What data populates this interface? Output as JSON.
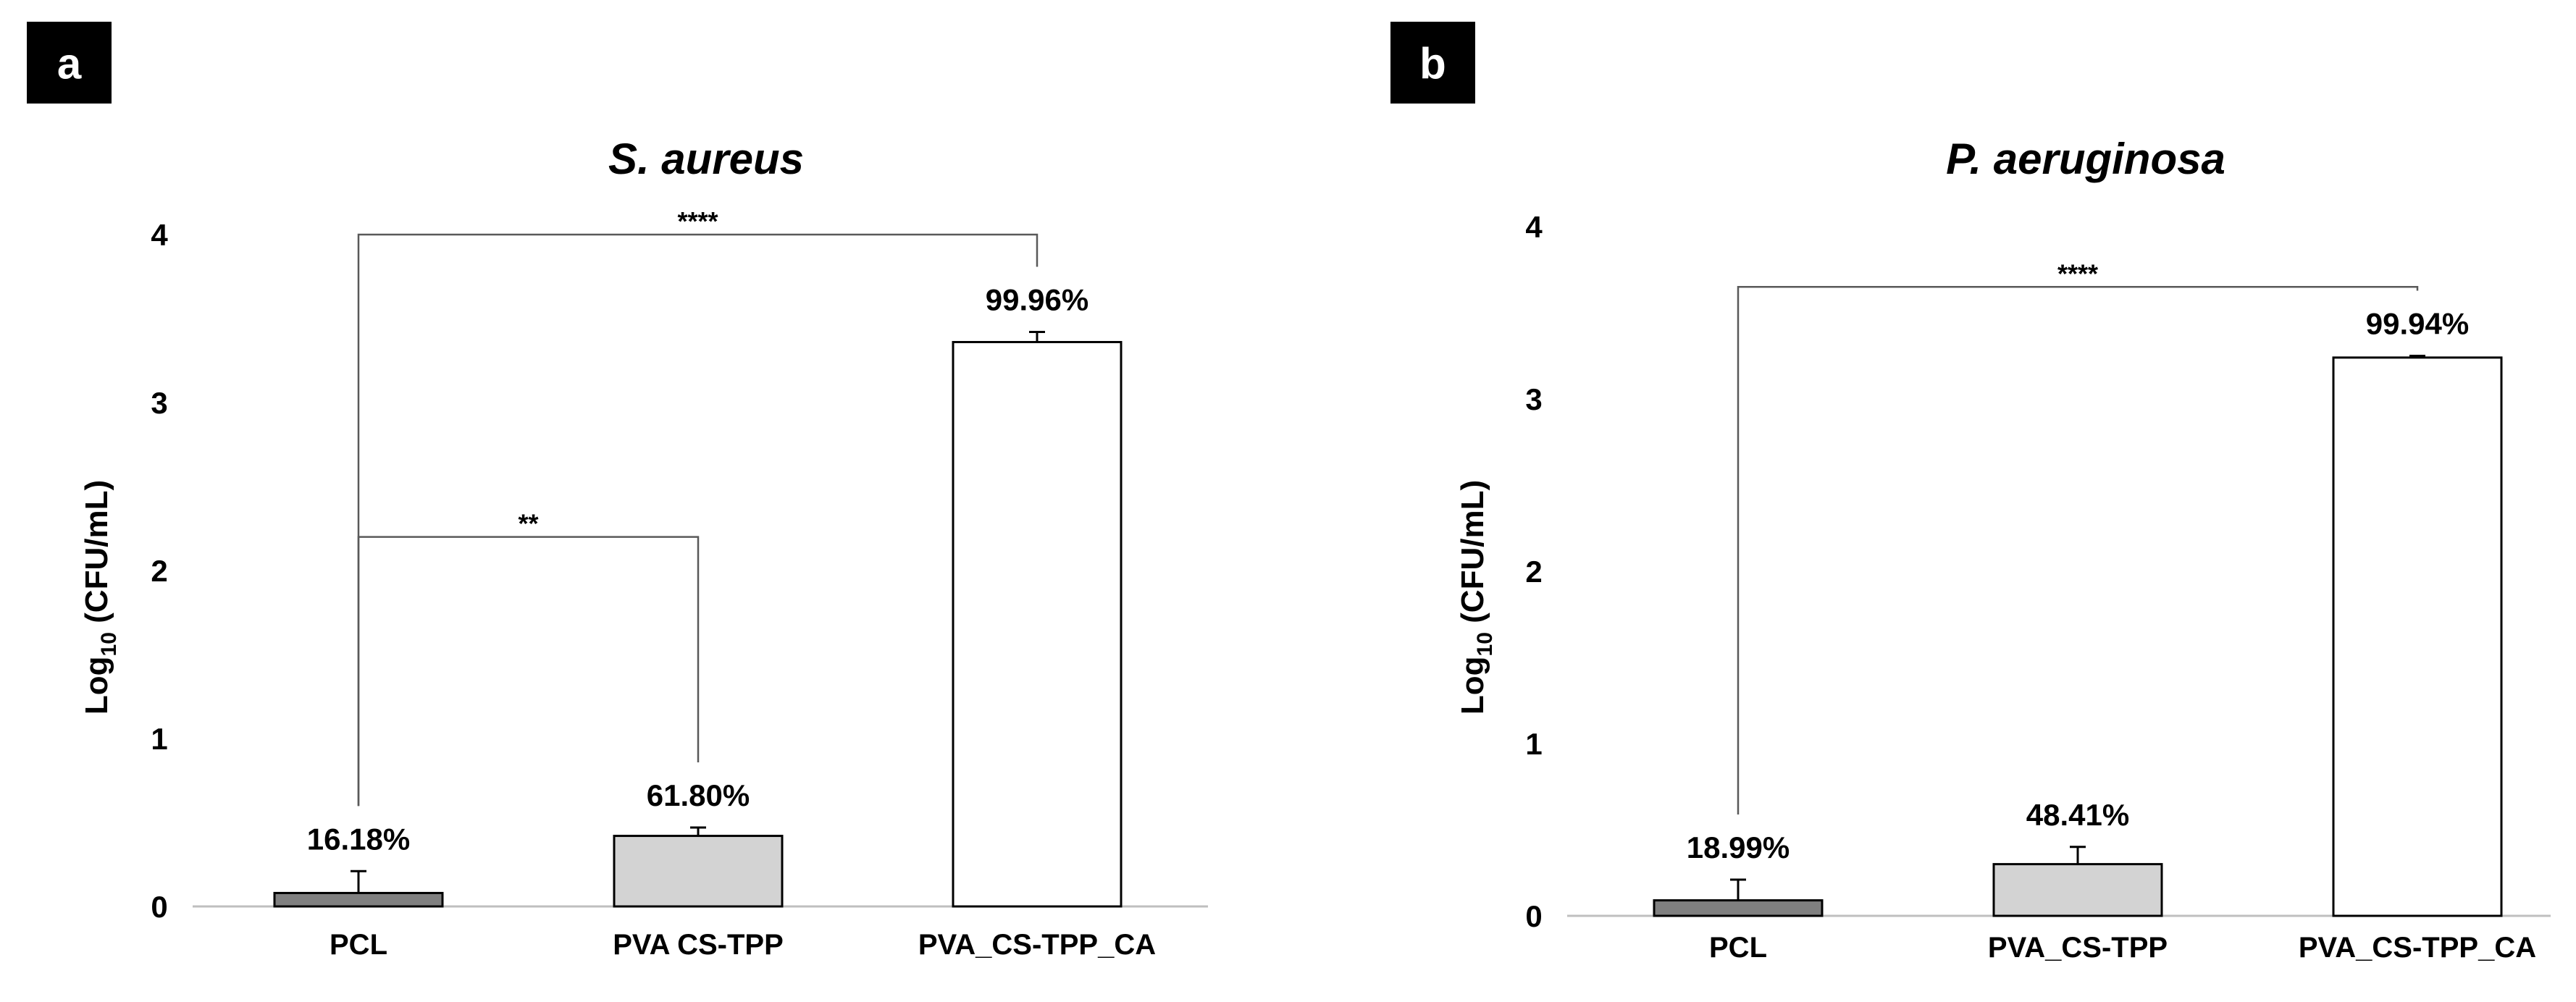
{
  "chart_data": [
    {
      "panel": "a",
      "type": "bar",
      "title": "S. aureus",
      "ylabel_prefix": "Log",
      "ylabel_sub": "10",
      "ylabel_suffix": " (CFU/mL)",
      "xlabel": "",
      "ylim": [
        0,
        4
      ],
      "yticks": [
        "0",
        "1",
        "2",
        "3",
        "4"
      ],
      "grid": false,
      "categories": [
        "PCL",
        "PVA  CS-TPP",
        "PVA_CS-TPP_CA"
      ],
      "values": [
        0.08,
        0.42,
        3.36
      ],
      "errors": [
        0.13,
        0.05,
        0.06
      ],
      "data_labels": [
        "16.18%",
        "61.80%",
        "99.96%"
      ],
      "colors": [
        "#808080",
        "#d3d3d3",
        "#ffffff"
      ],
      "significance": [
        {
          "from": 0,
          "to": 1,
          "level": 2.2,
          "label": "**"
        },
        {
          "from": 0,
          "to": 2,
          "level": 4.0,
          "label": "****"
        }
      ]
    },
    {
      "panel": "b",
      "type": "bar",
      "title": "P. aeruginosa",
      "ylabel_prefix": "Log",
      "ylabel_sub": "10",
      "ylabel_suffix": " (CFU/mL)",
      "xlabel": "",
      "ylim": [
        0,
        4
      ],
      "yticks": [
        "0",
        "1",
        "2",
        "3",
        "4"
      ],
      "grid": false,
      "categories": [
        "PCL",
        "PVA_CS-TPP",
        "PVA_CS-TPP_CA"
      ],
      "values": [
        0.09,
        0.3,
        3.24
      ],
      "errors": [
        0.12,
        0.1,
        0.01
      ],
      "data_labels": [
        "18.99%",
        "48.41%",
        "99.94%"
      ],
      "colors": [
        "#808080",
        "#d3d3d3",
        "#ffffff"
      ],
      "significance": [
        {
          "from": 0,
          "to": 2,
          "level": 3.65,
          "label": "****"
        }
      ]
    }
  ]
}
